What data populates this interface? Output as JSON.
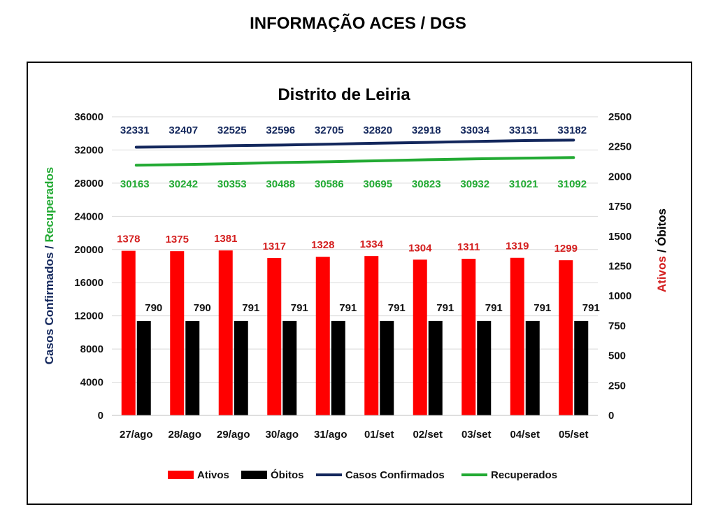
{
  "page": {
    "title": "INFORMAÇÃO ACES / DGS"
  },
  "colors": {
    "ativos": "#ff0000",
    "obitos": "#000000",
    "confirmados": "#13275c",
    "recuperados": "#22aa33",
    "ativos_label": "#d42020",
    "grid": "#d9d9d9"
  },
  "chart_data": {
    "type": "bar",
    "title": "Distrito de Leiria",
    "categories": [
      "27/ago",
      "28/ago",
      "29/ago",
      "30/ago",
      "31/ago",
      "01/set",
      "02/set",
      "03/set",
      "04/set",
      "05/set"
    ],
    "left_axis": {
      "label_part1": "Casos Confirmados",
      "label_sep": " / ",
      "label_part2": "Recuperados",
      "range": [
        0,
        36000
      ],
      "ticks": [
        "0",
        "4000",
        "8000",
        "12000",
        "16000",
        "20000",
        "24000",
        "28000",
        "32000",
        "36000"
      ]
    },
    "right_axis": {
      "label_part1": "Ativos",
      "label_sep": " / ",
      "label_part2": "Óbitos",
      "range": [
        0,
        2500
      ],
      "ticks": [
        "0",
        "250",
        "500",
        "750",
        "1000",
        "1250",
        "1500",
        "1750",
        "2000",
        "2250",
        "2500"
      ]
    },
    "series": [
      {
        "name": "Ativos",
        "kind": "bar",
        "axis": "right",
        "values": [
          1378,
          1375,
          1381,
          1317,
          1328,
          1334,
          1304,
          1311,
          1319,
          1299
        ]
      },
      {
        "name": "Óbitos",
        "kind": "bar",
        "axis": "right",
        "values": [
          790,
          790,
          791,
          791,
          791,
          791,
          791,
          791,
          791,
          791
        ]
      },
      {
        "name": "Casos Confirmados",
        "kind": "line",
        "axis": "left",
        "values": [
          32331,
          32407,
          32525,
          32596,
          32705,
          32820,
          32918,
          33034,
          33131,
          33182
        ]
      },
      {
        "name": "Recuperados",
        "kind": "line",
        "axis": "left",
        "values": [
          30163,
          30242,
          30353,
          30488,
          30586,
          30695,
          30823,
          30932,
          31021,
          31092
        ]
      }
    ],
    "grid": true,
    "legend_position": "bottom"
  }
}
